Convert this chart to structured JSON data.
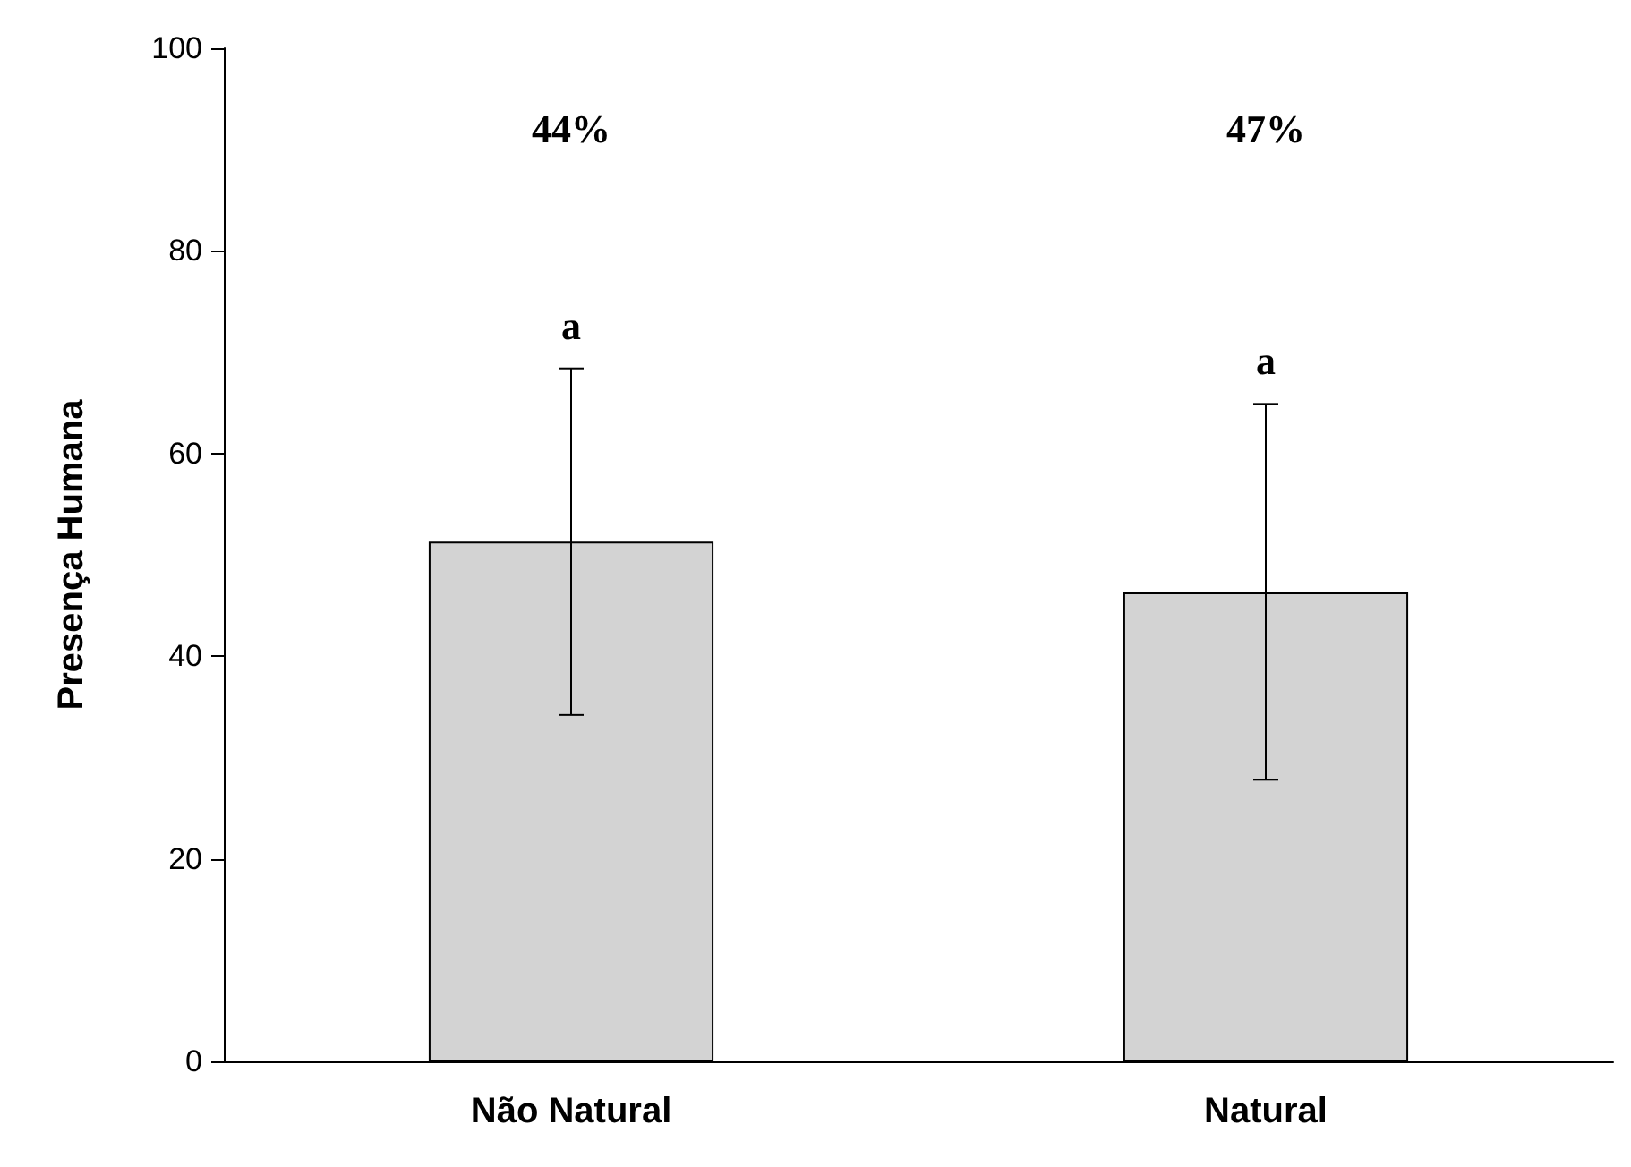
{
  "chart_data": {
    "type": "bar",
    "ylabel": "Presença Humana",
    "categories": [
      "Não Natural",
      "Natural"
    ],
    "values": [
      51.3,
      46.3
    ],
    "errors": [
      [
        34.2,
        68.4
      ],
      [
        27.8,
        64.9
      ]
    ],
    "color": "#d3d3d3",
    "ylim": [
      0,
      100
    ],
    "yticks": [
      0,
      20,
      40,
      60,
      80,
      100
    ],
    "grid": false,
    "annotations": [
      "44%",
      "47%",
      "a",
      "a"
    ]
  }
}
